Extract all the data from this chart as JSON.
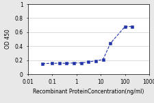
{
  "x": [
    0.04,
    0.1,
    0.2,
    0.4,
    0.8,
    1.6,
    3.1,
    6.25,
    12.5,
    25,
    100,
    200
  ],
  "y": [
    0.15,
    0.155,
    0.155,
    0.155,
    0.16,
    0.16,
    0.175,
    0.19,
    0.21,
    0.44,
    0.68,
    0.68
  ],
  "line_color": "#2233aa",
  "marker_color": "#2233aa",
  "marker": "s",
  "marker_size": 2.2,
  "line_width": 0.8,
  "line_style": "--",
  "xlabel": "Recombinant ProteinConcentration(ng/ml)",
  "ylabel": "OD 450",
  "xlim": [
    0.01,
    1000
  ],
  "ylim": [
    0,
    1
  ],
  "yticks": [
    0,
    0.2,
    0.4,
    0.6,
    0.8,
    1
  ],
  "xticks": [
    0.01,
    0.1,
    1,
    10,
    100,
    1000
  ],
  "xtick_labels": [
    "0.01",
    "0.1",
    "1",
    "10",
    "100",
    "1000"
  ],
  "xlabel_fontsize": 5.5,
  "ylabel_fontsize": 5.5,
  "tick_fontsize": 5.5,
  "background_color": "#e8e8e8",
  "plot_bg_color": "#ffffff",
  "grid_color": "#cccccc"
}
